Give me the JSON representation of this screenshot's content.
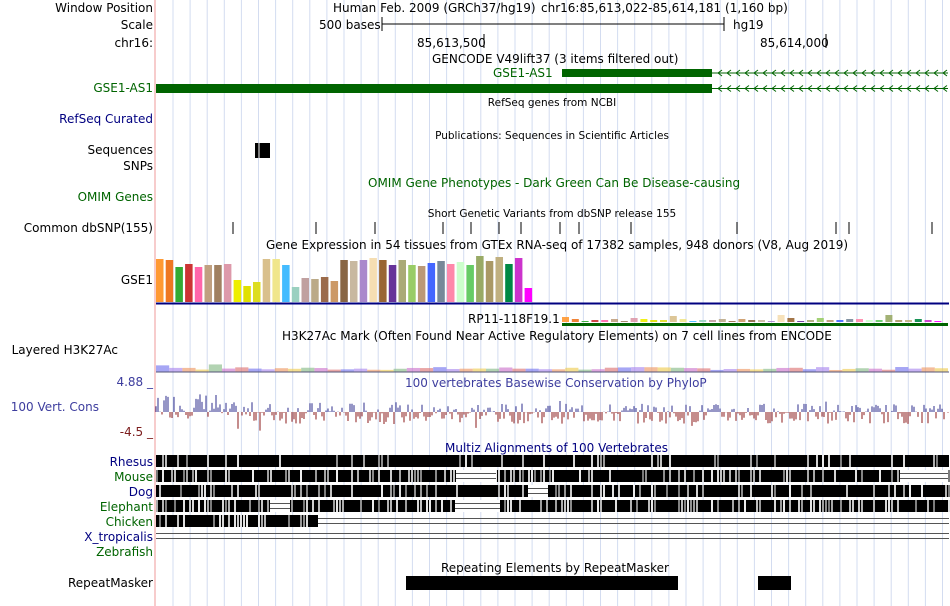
{
  "header": {
    "window_position_label": "Window Position",
    "scale_label": "Scale",
    "chrom_label": "chr16:",
    "assembly_text": "Human Feb. 2009 (GRCh37/hg19)",
    "position_text": "chr16:85,613,022-85,614,181 (1,160 bp)",
    "scale_text": "500 bases",
    "db_text": "hg19",
    "coord_ticks": [
      "85,613,500",
      "85,614,000"
    ]
  },
  "tracks": {
    "gencode": {
      "title": "GENCODE V49lift37 (3 items filtered out)",
      "left_label": "GSE1-AS1",
      "feature_label": "GSE1-AS1",
      "color": "#006400"
    },
    "refseq": {
      "left_label": "RefSeq Curated",
      "title": "RefSeq genes from NCBI"
    },
    "publications": {
      "title": "Publications: Sequences in Scientific Articles",
      "left_label": "Sequences",
      "snps_label": "SNPs"
    },
    "omim": {
      "left_label": "OMIM Genes",
      "title": "OMIM Gene Phenotypes - Dark Green Can Be Disease-causing"
    },
    "dbsnp": {
      "left_label": "Common dbSNP(155)",
      "title": "Short Genetic Variants from dbSNP release 155"
    },
    "gtex": {
      "title": "Gene Expression in 54 tissues from GTEx RNA-seq of 17382 samples, 948 donors (V8, Aug 2019)",
      "left_label": "GSE1",
      "second_gene_label": "RP11-118F19.1"
    },
    "h3k27ac": {
      "title": "H3K27Ac Mark (Often Found Near Active Regulatory Elements) on 7 cell lines from ENCODE",
      "left_label": "Layered H3K27Ac"
    },
    "conservation": {
      "title": "100 vertebrates Basewise Conservation by PhyloP",
      "left_label": "100 Vert. Cons",
      "max_label": "4.88 _",
      "min_label": "-4.5 _"
    },
    "multiz": {
      "title": "Multiz Alignments of 100 Vertebrates",
      "species": [
        "Rhesus",
        "Mouse",
        "Dog",
        "Elephant",
        "Chicken",
        "X_tropicalis",
        "Zebrafish"
      ]
    },
    "repeatmasker": {
      "title": "Repeating Elements by RepeatMasker",
      "left_label": "RepeatMasker"
    }
  },
  "colors": {
    "gene_green": "#006400",
    "rule_navy": "#000080",
    "guide_blue": "#cfd8ee",
    "cons_blue": "#2c2c8c",
    "cons_red": "#8b1a1a",
    "gtex_tissues": [
      "#ff9933",
      "#ee7722",
      "#33aa33",
      "#cc3333",
      "#ff66aa",
      "#c0a080",
      "#a08060",
      "#dd99aa",
      "#eeee00",
      "#e0e000",
      "#dddd22",
      "#d9c08c",
      "#f0e68c",
      "#44bbff",
      "#9ad0c0",
      "#c0a0a0",
      "#bbaa88",
      "#9b6b4b",
      "#cc9966",
      "#886644",
      "#c8b8a0",
      "#aa88cc",
      "#f5deb3",
      "#996633",
      "#663399",
      "#aaaa77",
      "#99cc66",
      "#bb9977",
      "#4466ff",
      "#778899",
      "#ff88aa",
      "#ccffcc",
      "#66cc66",
      "#99aa66",
      "#aa9966",
      "#c0b080",
      "#008844",
      "#cc33cc",
      "#ff00ff"
    ]
  }
}
